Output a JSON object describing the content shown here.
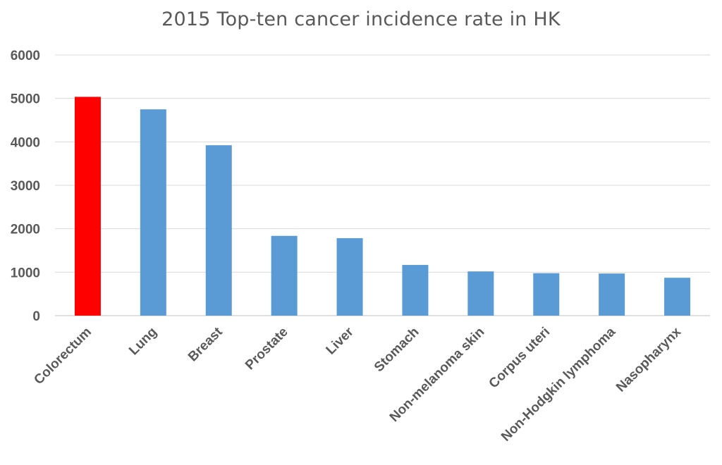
{
  "chart_data": {
    "type": "bar",
    "title": "2015 Top-ten cancer incidence rate in HK",
    "xlabel": "",
    "ylabel": "",
    "categories": [
      "Colorectum",
      "Lung",
      "Breast",
      "Prostate",
      "Liver",
      "Stomach",
      "Non-melanoma skin",
      "Corpus uteri",
      "Non-Hodgkin lymphoma",
      "Nasopharynx"
    ],
    "values": [
      5036,
      4748,
      3922,
      1836,
      1783,
      1167,
      1018,
      977,
      970,
      872
    ],
    "bar_colors": [
      "#ff0000",
      "#5b9bd5",
      "#5b9bd5",
      "#5b9bd5",
      "#5b9bd5",
      "#5b9bd5",
      "#5b9bd5",
      "#5b9bd5",
      "#5b9bd5",
      "#5b9bd5"
    ],
    "ylim": [
      0,
      6000
    ],
    "yticks": [
      0,
      1000,
      2000,
      3000,
      4000,
      5000,
      6000
    ],
    "grid": true,
    "legend": "none"
  }
}
